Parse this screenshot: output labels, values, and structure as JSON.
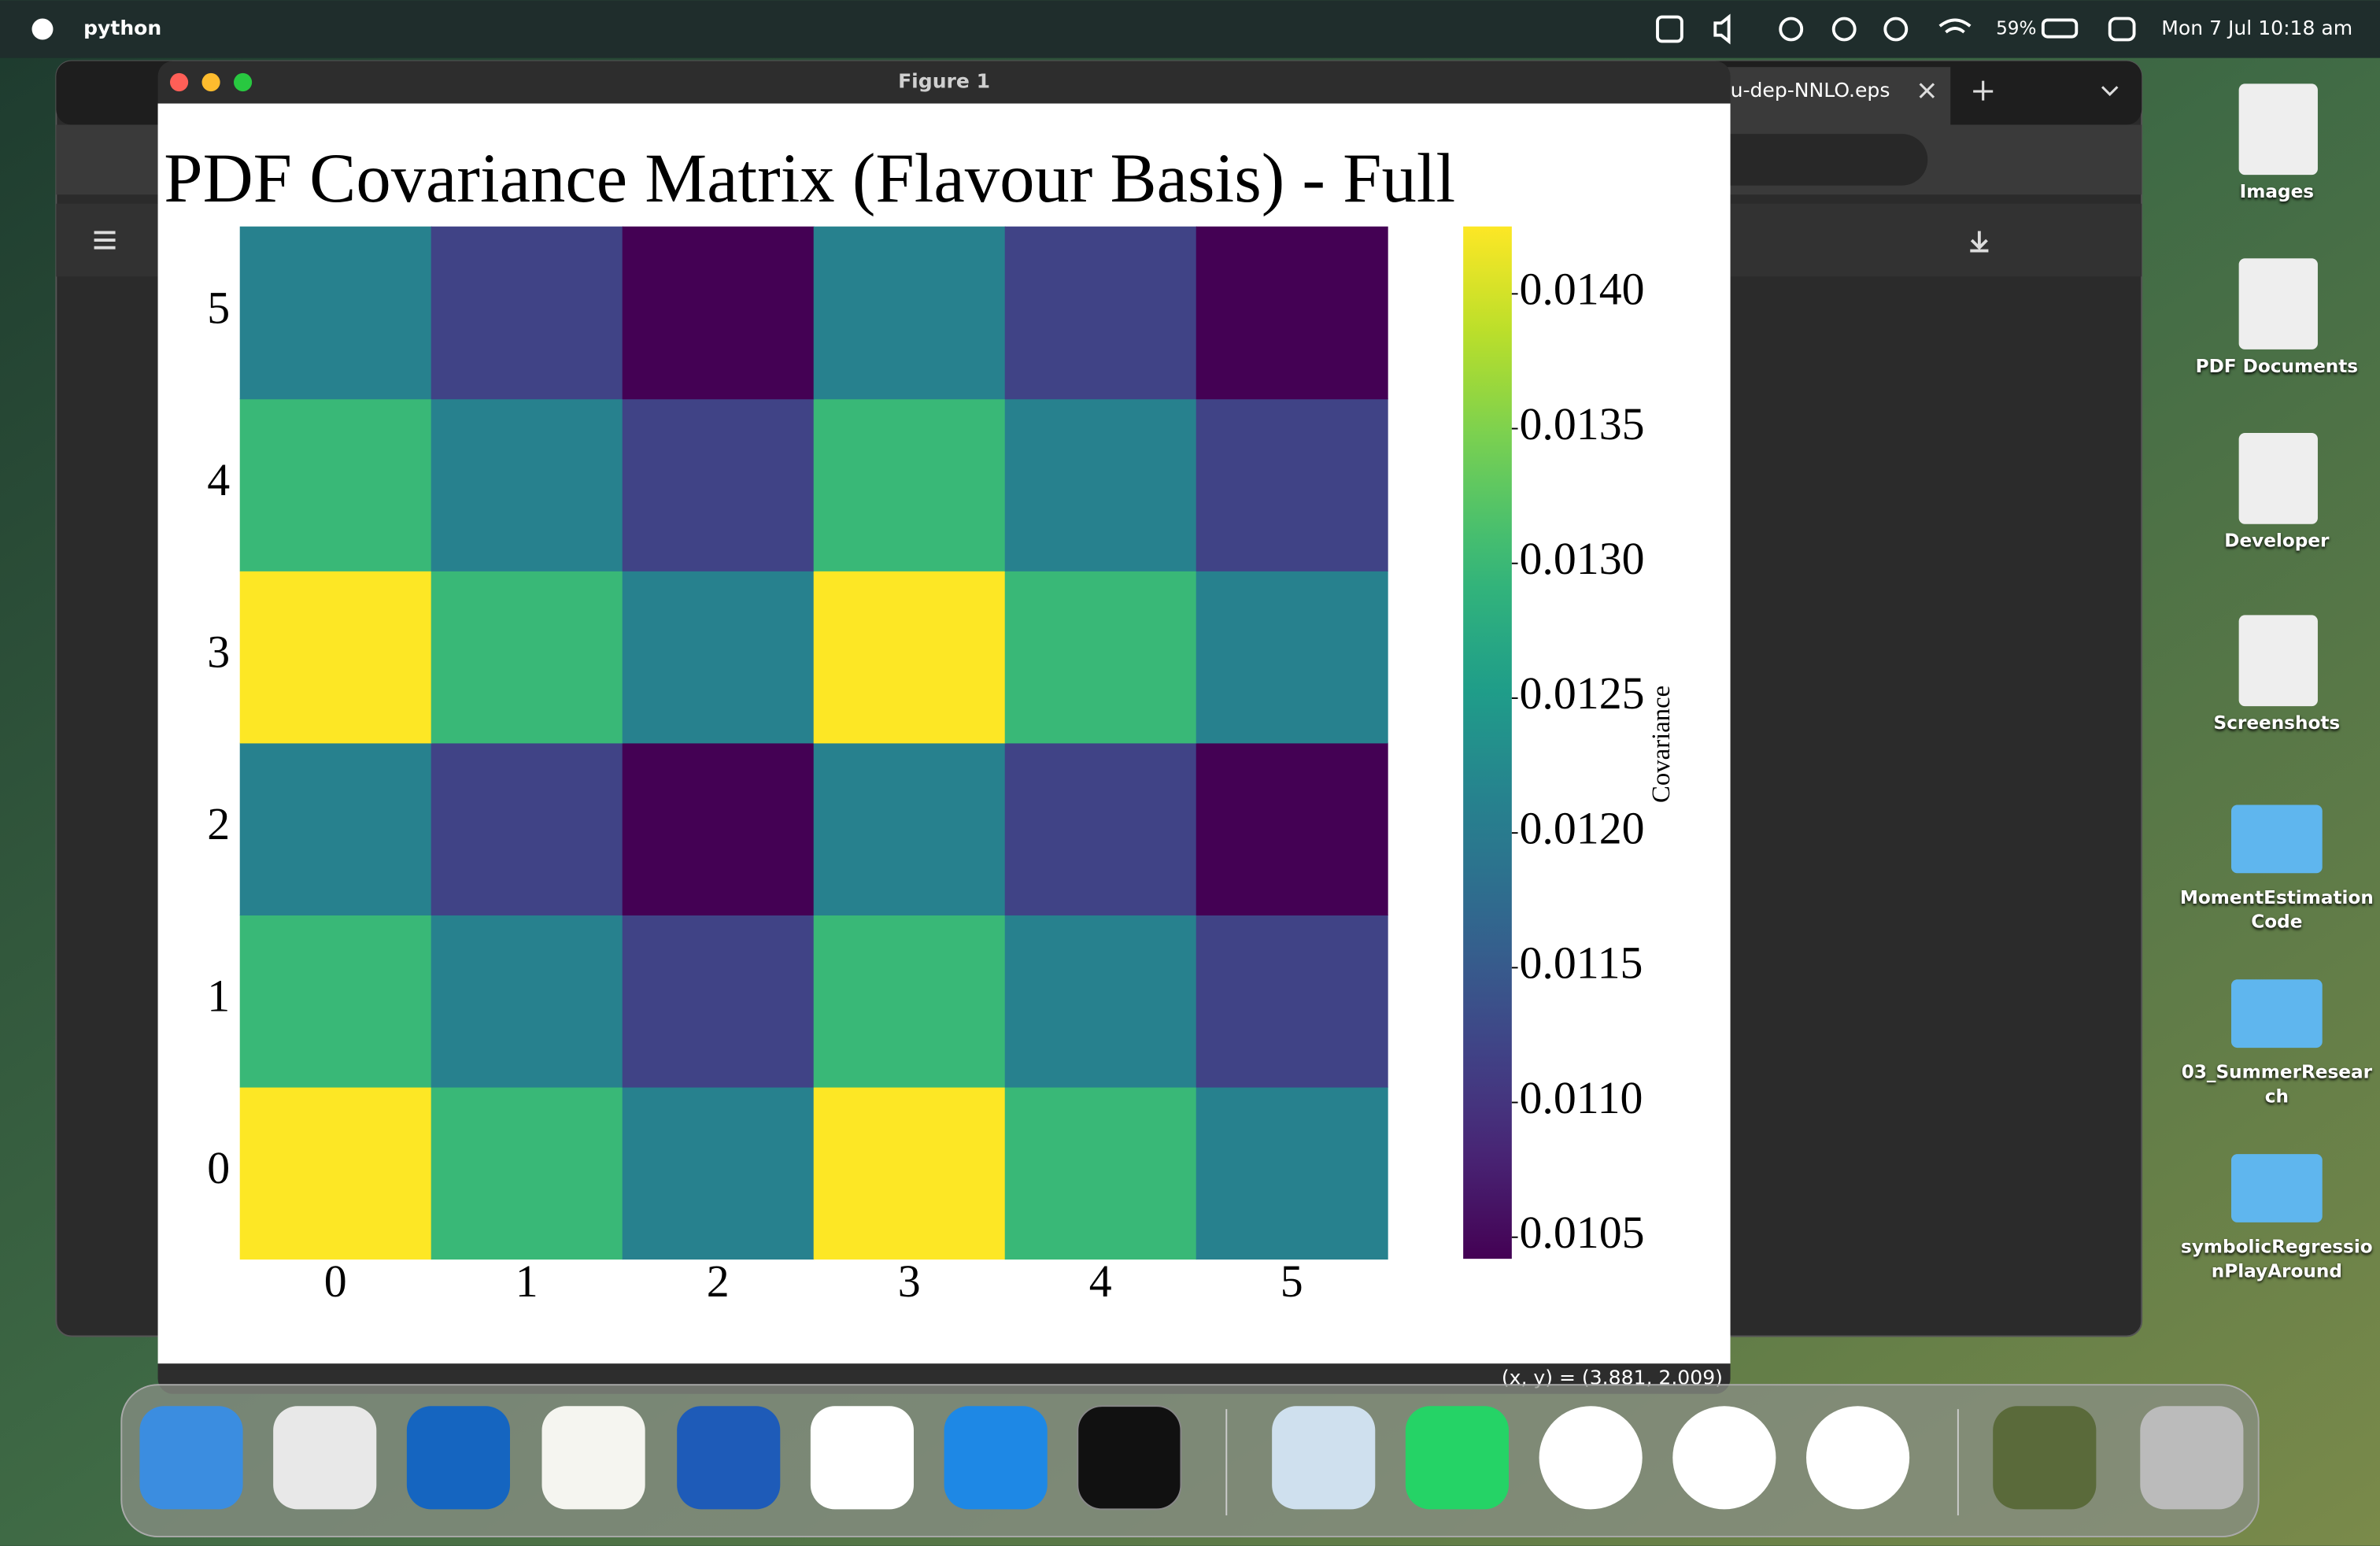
{
  "menu_bar": {
    "app": "python",
    "battery": "59%",
    "datetime": "Mon 7 Jul  10:18 am"
  },
  "browser_tab": "u-dep-NNLO.eps",
  "window_title": "Figure 1",
  "status": "(x, y) = (3.881, 2.009)",
  "desktop_icons": [
    "Images",
    "PDF Documents",
    "Developer",
    "Screenshots",
    "MomentEstimation Code",
    "03_SummerResearch",
    "symbolicRegressionPlayAround"
  ],
  "chart_data": {
    "type": "heatmap",
    "title": "PDF Covariance Matrix (Flavour Basis) - Full",
    "x": [
      0,
      1,
      2,
      3,
      4,
      5
    ],
    "y": [
      0,
      1,
      2,
      3,
      4,
      5
    ],
    "z": [
      [
        0.01425,
        0.013,
        0.0121,
        0.01425,
        0.013,
        0.0121
      ],
      [
        0.013,
        0.0121,
        0.0112,
        0.013,
        0.0121,
        0.0112
      ],
      [
        0.0121,
        0.0112,
        0.01042,
        0.0121,
        0.0112,
        0.01042
      ],
      [
        0.01425,
        0.013,
        0.0121,
        0.01425,
        0.013,
        0.0121
      ],
      [
        0.013,
        0.0121,
        0.0112,
        0.013,
        0.0121,
        0.0112
      ],
      [
        0.0121,
        0.0112,
        0.01042,
        0.0121,
        0.0112,
        0.01042
      ]
    ],
    "colormap": "viridis",
    "clim": [
      0.01042,
      0.01425
    ],
    "colorbar_label": "Covariance",
    "colorbar_ticks": [
      0.0105,
      {
        "value": 0.011,
        "label": "0.0110"
      },
      0.0115,
      {
        "value": 0.012,
        "label": "0.0120"
      },
      0.0125,
      {
        "value": 0.013,
        "label": "0.0130"
      },
      0.0135,
      {
        "value": 0.014,
        "label": "0.0140"
      }
    ]
  }
}
